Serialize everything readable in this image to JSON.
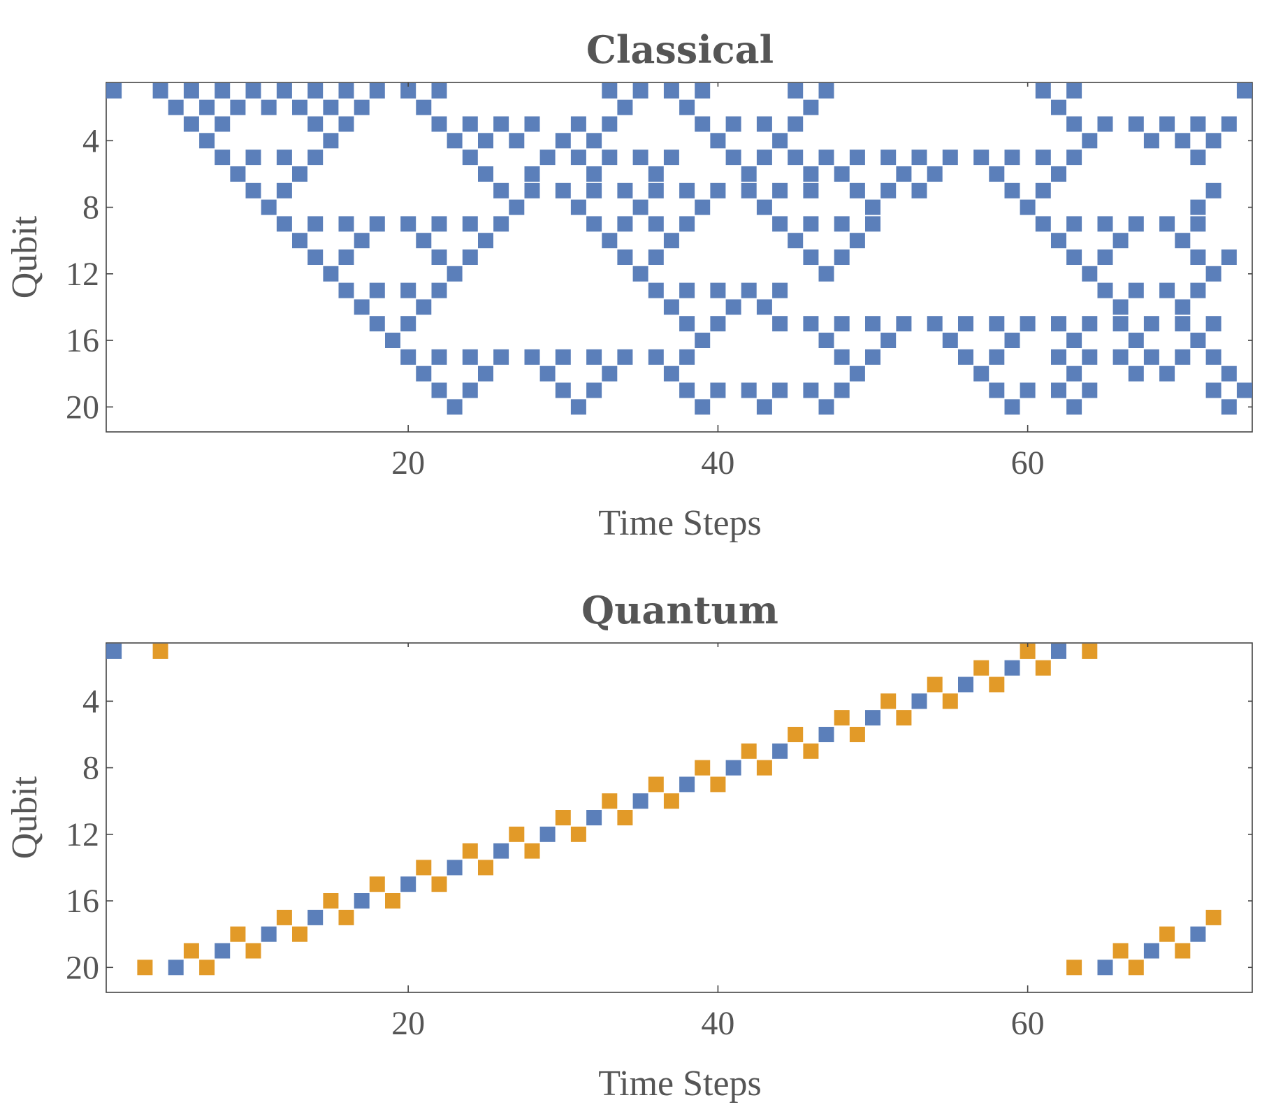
{
  "chart_data": [
    {
      "type": "heatmap",
      "title": "Classical",
      "xlabel": "Time Steps",
      "ylabel": "Qubit",
      "xlim": [
        0.5,
        74.5
      ],
      "ylim": [
        0.5,
        21.5
      ],
      "y_reversed": true,
      "xticks": [
        20,
        40,
        60
      ],
      "yticks": [
        4,
        8,
        12,
        16,
        20
      ],
      "grid": false,
      "legend": "none",
      "colors": {
        "1": "#5b7fba"
      },
      "cells_by_row": {
        "1": [
          1,
          4,
          6,
          8,
          10,
          12,
          14,
          16,
          18,
          20,
          22,
          33,
          35,
          37,
          39,
          45,
          47,
          61,
          63,
          74
        ],
        "2": [
          5,
          7,
          9,
          11,
          13,
          15,
          17,
          21,
          34,
          38,
          46,
          62
        ],
        "3": [
          6,
          8,
          14,
          16,
          22,
          24,
          26,
          28,
          31,
          33,
          39,
          41,
          43,
          45,
          63,
          65,
          67,
          69,
          71,
          73
        ],
        "4": [
          7,
          15,
          23,
          25,
          27,
          30,
          32,
          40,
          44,
          64,
          68,
          70,
          72
        ],
        "5": [
          8,
          10,
          12,
          14,
          24,
          29,
          31,
          33,
          35,
          37,
          41,
          43,
          45,
          47,
          49,
          51,
          53,
          55,
          57,
          59,
          61,
          63,
          71
        ],
        "6": [
          9,
          13,
          25,
          28,
          32,
          36,
          42,
          46,
          48,
          52,
          54,
          58,
          62
        ],
        "7": [
          10,
          12,
          26,
          28,
          30,
          32,
          34,
          36,
          38,
          40,
          42,
          44,
          46,
          49,
          51,
          53,
          59,
          61,
          72
        ],
        "8": [
          11,
          27,
          31,
          35,
          39,
          43,
          50,
          60,
          71
        ],
        "9": [
          12,
          14,
          16,
          18,
          20,
          22,
          24,
          26,
          32,
          34,
          36,
          38,
          44,
          46,
          48,
          50,
          61,
          63,
          65,
          67,
          69,
          71
        ],
        "10": [
          13,
          17,
          21,
          25,
          33,
          37,
          45,
          49,
          62,
          66,
          70
        ],
        "11": [
          14,
          16,
          22,
          24,
          34,
          36,
          46,
          48,
          63,
          65,
          71,
          73
        ],
        "12": [
          15,
          23,
          35,
          47,
          64,
          72
        ],
        "13": [
          16,
          18,
          20,
          22,
          36,
          38,
          40,
          42,
          44,
          65,
          67,
          69,
          71
        ],
        "14": [
          17,
          21,
          37,
          41,
          43,
          66,
          70
        ],
        "15": [
          18,
          20,
          38,
          40,
          44,
          46,
          48,
          50,
          52,
          54,
          56,
          58,
          60,
          62,
          64,
          66,
          68,
          70,
          72
        ],
        "16": [
          19,
          39,
          47,
          51,
          55,
          59,
          63,
          67,
          71
        ],
        "17": [
          20,
          22,
          24,
          26,
          28,
          30,
          32,
          34,
          36,
          38,
          48,
          50,
          56,
          58,
          62,
          64,
          66,
          68,
          70,
          72
        ],
        "18": [
          21,
          25,
          29,
          33,
          37,
          49,
          57,
          63,
          67,
          69,
          73
        ],
        "19": [
          22,
          24,
          30,
          32,
          38,
          40,
          42,
          44,
          46,
          48,
          58,
          60,
          62,
          64,
          72,
          74
        ],
        "20": [
          23,
          31,
          39,
          43,
          47,
          59,
          63,
          73
        ]
      }
    },
    {
      "type": "heatmap",
      "title": "Quantum",
      "xlabel": "Time Steps",
      "ylabel": "Qubit",
      "xlim": [
        0.5,
        74.5
      ],
      "ylim": [
        0.5,
        21.5
      ],
      "y_reversed": true,
      "xticks": [
        20,
        40,
        60
      ],
      "yticks": [
        4,
        8,
        12,
        16,
        20
      ],
      "grid": false,
      "legend": "none",
      "colors": {
        "1": "#5b7fba",
        "2": "#e29a28"
      },
      "cells": [
        [
          1,
          1,
          1
        ],
        [
          4,
          1,
          2
        ],
        [
          3,
          20,
          2
        ],
        [
          5,
          20,
          1
        ],
        [
          6,
          19,
          2
        ],
        [
          7,
          20,
          2
        ],
        [
          8,
          19,
          1
        ],
        [
          9,
          18,
          2
        ],
        [
          10,
          19,
          2
        ],
        [
          11,
          18,
          1
        ],
        [
          12,
          17,
          2
        ],
        [
          13,
          18,
          2
        ],
        [
          14,
          17,
          1
        ],
        [
          15,
          16,
          2
        ],
        [
          16,
          17,
          2
        ],
        [
          17,
          16,
          1
        ],
        [
          18,
          15,
          2
        ],
        [
          19,
          16,
          2
        ],
        [
          20,
          15,
          1
        ],
        [
          21,
          14,
          2
        ],
        [
          22,
          15,
          2
        ],
        [
          23,
          14,
          1
        ],
        [
          24,
          13,
          2
        ],
        [
          25,
          14,
          2
        ],
        [
          26,
          13,
          1
        ],
        [
          27,
          12,
          2
        ],
        [
          28,
          13,
          2
        ],
        [
          29,
          12,
          1
        ],
        [
          30,
          11,
          2
        ],
        [
          31,
          12,
          2
        ],
        [
          32,
          11,
          1
        ],
        [
          33,
          10,
          2
        ],
        [
          34,
          11,
          2
        ],
        [
          35,
          10,
          1
        ],
        [
          36,
          9,
          2
        ],
        [
          37,
          10,
          2
        ],
        [
          38,
          9,
          1
        ],
        [
          39,
          8,
          2
        ],
        [
          40,
          9,
          2
        ],
        [
          41,
          8,
          1
        ],
        [
          42,
          7,
          2
        ],
        [
          43,
          8,
          2
        ],
        [
          44,
          7,
          1
        ],
        [
          45,
          6,
          2
        ],
        [
          46,
          7,
          2
        ],
        [
          47,
          6,
          1
        ],
        [
          48,
          5,
          2
        ],
        [
          49,
          6,
          2
        ],
        [
          50,
          5,
          1
        ],
        [
          51,
          4,
          2
        ],
        [
          52,
          5,
          2
        ],
        [
          53,
          4,
          1
        ],
        [
          54,
          3,
          2
        ],
        [
          55,
          4,
          2
        ],
        [
          56,
          3,
          1
        ],
        [
          57,
          2,
          2
        ],
        [
          58,
          3,
          2
        ],
        [
          59,
          2,
          1
        ],
        [
          60,
          1,
          2
        ],
        [
          61,
          2,
          2
        ],
        [
          62,
          1,
          1
        ],
        [
          64,
          1,
          2
        ],
        [
          63,
          20,
          2
        ],
        [
          65,
          20,
          1
        ],
        [
          66,
          19,
          2
        ],
        [
          67,
          20,
          2
        ],
        [
          68,
          19,
          1
        ],
        [
          69,
          18,
          2
        ],
        [
          70,
          19,
          2
        ],
        [
          71,
          18,
          1
        ],
        [
          72,
          17,
          2
        ]
      ]
    }
  ]
}
